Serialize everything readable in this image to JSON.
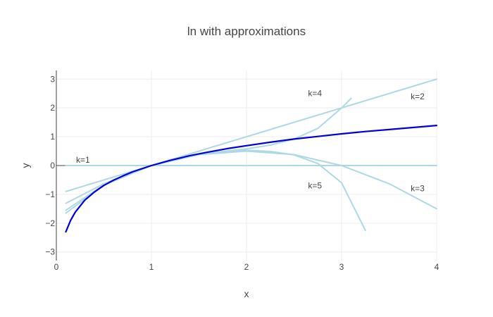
{
  "chart_data": {
    "type": "line",
    "title": "ln with approximations",
    "xlabel": "x",
    "ylabel": "y",
    "xlim": [
      0,
      4
    ],
    "ylim": [
      -3.3,
      3.3
    ],
    "x_ticks": [
      "0",
      "1",
      "2",
      "3",
      "4"
    ],
    "y_ticks": [
      "3",
      "2",
      "1",
      "0",
      "−1",
      "−2",
      "−3"
    ],
    "grid": true,
    "legend": "none",
    "colors": {
      "ln": "#0000dd",
      "approx": "#add8e6"
    },
    "series": [
      {
        "name": "",
        "role": "ln",
        "x": [
          0.1,
          0.15,
          0.2,
          0.3,
          0.4,
          0.5,
          0.6,
          0.7,
          0.8,
          0.9,
          1.0,
          1.2,
          1.4,
          1.6,
          1.8,
          2.0,
          2.25,
          2.5,
          2.75,
          3.0,
          3.25,
          3.5,
          3.75,
          4.0
        ],
        "y": [
          -2.3,
          -1.9,
          -1.61,
          -1.2,
          -0.92,
          -0.69,
          -0.51,
          -0.36,
          -0.22,
          -0.11,
          0.0,
          0.18,
          0.34,
          0.47,
          0.59,
          0.69,
          0.81,
          0.92,
          1.01,
          1.1,
          1.18,
          1.25,
          1.32,
          1.39
        ]
      },
      {
        "name": "",
        "role": "approx",
        "x": [
          0.1,
          4.0
        ],
        "y": [
          0.0,
          0.0
        ]
      },
      {
        "name": "",
        "role": "approx",
        "x": [
          0.1,
          1.0,
          2.0,
          3.0,
          4.0
        ],
        "y": [
          -0.9,
          0.0,
          1.0,
          2.0,
          3.0
        ]
      },
      {
        "name": "",
        "role": "approx",
        "x": [
          0.1,
          0.5,
          1.0,
          1.5,
          2.0,
          2.5,
          3.0,
          3.5,
          4.0
        ],
        "y": [
          -1.31,
          -0.63,
          0.0,
          0.38,
          0.5,
          0.38,
          0.0,
          -0.63,
          -1.5
        ]
      },
      {
        "name": "",
        "role": "approx",
        "x": [
          0.1,
          0.5,
          1.0,
          1.5,
          2.0,
          2.25,
          2.5,
          2.75,
          3.0,
          3.1
        ],
        "y": [
          -1.55,
          -0.67,
          0.0,
          0.4,
          0.58,
          0.71,
          0.92,
          1.29,
          2.0,
          2.33
        ]
      },
      {
        "name": "",
        "role": "approx",
        "x": [
          0.1,
          0.5,
          1.0,
          1.5,
          2.0,
          2.25,
          2.5,
          2.75,
          3.0,
          3.25
        ],
        "y": [
          -1.65,
          -0.68,
          0.0,
          0.41,
          0.53,
          0.49,
          0.37,
          0.07,
          -0.6,
          -2.25
        ]
      }
    ],
    "annotations": [
      {
        "text": "k=1",
        "x": 0.28,
        "y": 0.2
      },
      {
        "text": "k=2",
        "x": 3.8,
        "y": 2.4
      },
      {
        "text": "k=3",
        "x": 3.8,
        "y": -0.8
      },
      {
        "text": "k=4",
        "x": 2.72,
        "y": 2.5
      },
      {
        "text": "k=5",
        "x": 2.72,
        "y": -0.7
      }
    ]
  }
}
